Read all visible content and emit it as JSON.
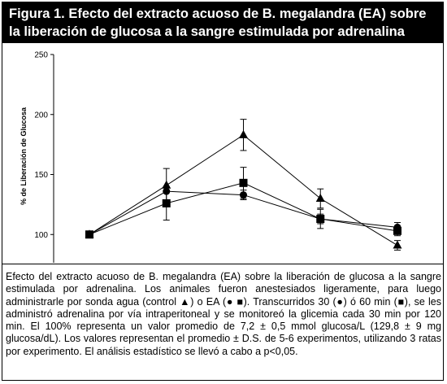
{
  "title": {
    "line1": "Figura 1. Efecto del extracto acuoso de B. megalandra (EA) sobre",
    "line2": "la liberación de glucosa a la sangre estimulada por adrenalina"
  },
  "chart_data": {
    "type": "line",
    "title": "",
    "xlabel": "",
    "ylabel": "% de Liberación de Glucosa",
    "ylim": [
      50,
      250
    ],
    "yticks": [
      50,
      100,
      150,
      200,
      250
    ],
    "x": [
      0,
      30,
      60,
      90,
      120
    ],
    "grid": false,
    "legend": "none",
    "series": [
      {
        "marker": "triangle",
        "values": [
          100,
          141,
          183,
          130,
          91
        ],
        "errors": [
          0,
          14,
          13,
          8,
          4
        ]
      },
      {
        "marker": "square",
        "values": [
          100,
          126,
          143,
          113,
          103
        ],
        "errors": [
          0,
          14,
          13,
          8,
          4
        ]
      },
      {
        "marker": "circle",
        "values": [
          100,
          136,
          133,
          113,
          106
        ],
        "errors": [
          0,
          0,
          4,
          4,
          4
        ]
      }
    ]
  },
  "caption": "Efecto del extracto acuoso de B. megalandra (EA) sobre la liberación de glucosa a la sangre estimulada por adrenalina. Los animales fueron anestesiados ligeramente, para luego administrarle por sonda agua (control ▲) o EA (● ■). Transcurridos 30 (●) ó 60 min (■), se les administró adrenalina por vía intraperitoneal y se monitoreó la glicemia cada 30 min por 120 min. El 100% representa un valor promedio de 7,2 ± 0,5 mmol glucosa/L (129,8 ± 9 mg glucosa/dL). Los valores representan el promedio ± D.S. de 5-6 experimentos, utilizando 3 ratas por experimento. El análisis estadístico se llevó a cabo a p<0,05.",
  "colors": {
    "title_bg": "#000000",
    "title_fg": "#ffffff",
    "line": "#000000"
  }
}
